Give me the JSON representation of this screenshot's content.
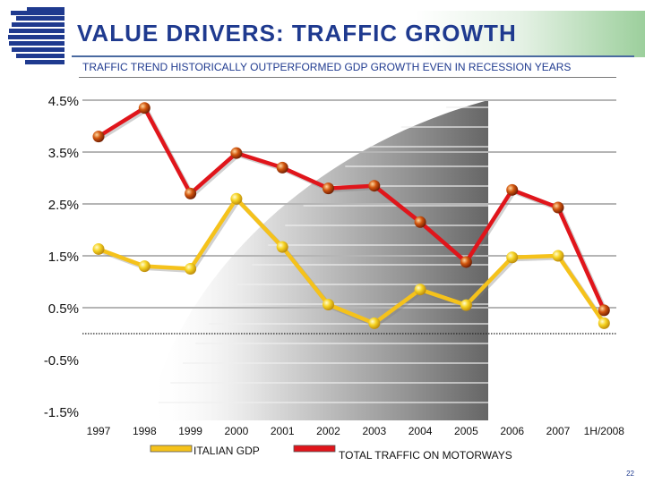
{
  "header": {
    "title": "VALUE DRIVERS: TRAFFIC GROWTH",
    "subtitle": "TRAFFIC TREND HISTORICALLY OUTPERFORMED GDP GROWTH EVEN IN RECESSION YEARS"
  },
  "footer": {
    "page_number": "22"
  },
  "colors": {
    "title": "#1f3a8f",
    "traffic_line": "#e0151b",
    "gdp_line": "#f5c21b",
    "traffic_marker": "#c84a0c",
    "gdp_marker": "#f4d320"
  },
  "chart_data": {
    "type": "line",
    "title": "",
    "xlabel": "",
    "ylabel": "",
    "categories": [
      "1997",
      "1998",
      "1999",
      "2000",
      "2001",
      "2002",
      "2003",
      "2004",
      "2005",
      "2006",
      "2007",
      "1H/2008"
    ],
    "y_tick_labels": [
      "4.5%",
      "3.5%",
      "2.5%",
      "1.5%",
      "0.5%",
      "-0.5%",
      "-1.5%"
    ],
    "y_ticks": [
      4.5,
      3.5,
      2.5,
      1.5,
      0.5,
      -0.5,
      -1.5
    ],
    "ylim": [
      -1.5,
      4.5
    ],
    "grid": true,
    "legend": "bottom",
    "series": [
      {
        "name": "ITALIAN GDP",
        "color": "#f5c21b",
        "values": [
          1.63,
          1.3,
          1.25,
          2.6,
          1.67,
          0.56,
          0.2,
          0.85,
          0.55,
          1.47,
          1.5,
          0.2
        ]
      },
      {
        "name": "TOTAL TRAFFIC ON MOTORWAYS",
        "color": "#e0151b",
        "values": [
          3.8,
          4.35,
          2.7,
          3.48,
          3.2,
          2.8,
          2.85,
          2.15,
          1.38,
          2.77,
          2.43,
          0.45
        ]
      }
    ]
  }
}
